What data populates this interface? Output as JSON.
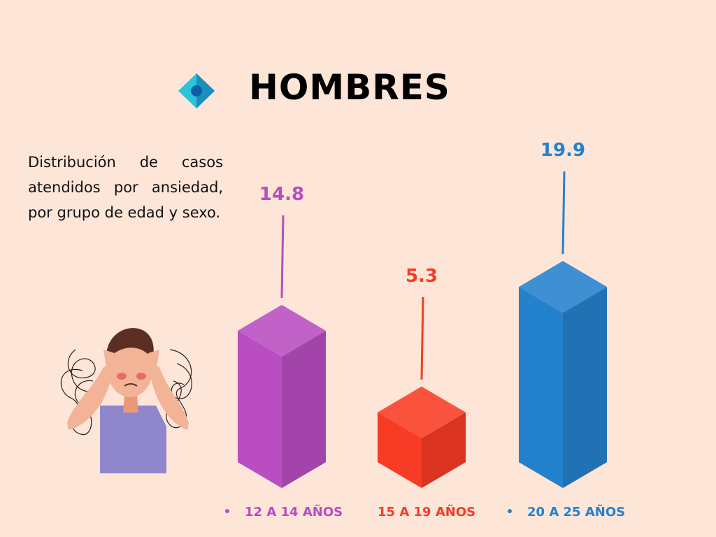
{
  "header": {
    "title": "HOMBRES",
    "icon": "diamond-icon"
  },
  "description": "Distribución de casos atendidos por ansiedad, por grupo de edad y sexo.",
  "illustration": "anxious-person-icon",
  "colors": {
    "background": "#fde5d8",
    "purple": "#b94dc1",
    "red": "#f83b24",
    "blue": "#2481cc"
  },
  "chart_data": {
    "type": "bar",
    "title": "HOMBRES",
    "categories": [
      "12 A 14 AÑOS",
      "15 A 19 AÑOS",
      "20 A 25 AÑOS"
    ],
    "values": [
      14.8,
      5.3,
      19.9
    ],
    "value_labels": [
      "14.8",
      "5.3",
      "19.9"
    ],
    "series_colors": [
      "#b94dc1",
      "#f83b24",
      "#2481cc"
    ],
    "style": "3d-prism",
    "legend_position": "bottom",
    "grid": false
  }
}
